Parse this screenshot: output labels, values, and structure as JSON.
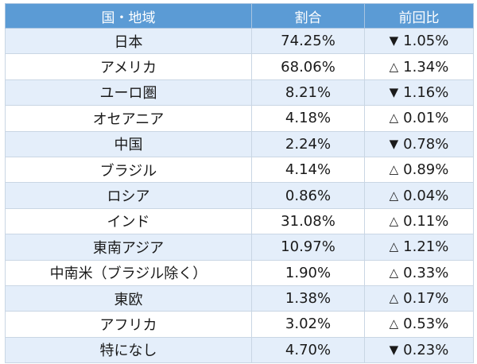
{
  "table": {
    "headers": [
      "国・地域",
      "割合",
      "前回比"
    ],
    "rows": [
      {
        "region": "日本",
        "share": "74.25%",
        "direction": "down",
        "symbol": "▼",
        "change": "1.05%"
      },
      {
        "region": "アメリカ",
        "share": "68.06%",
        "direction": "up",
        "symbol": "△",
        "change": "1.34%"
      },
      {
        "region": "ユーロ圏",
        "share": "8.21%",
        "direction": "down",
        "symbol": "▼",
        "change": "1.16%"
      },
      {
        "region": "オセアニア",
        "share": "4.18%",
        "direction": "up",
        "symbol": "△",
        "change": "0.01%"
      },
      {
        "region": "中国",
        "share": "2.24%",
        "direction": "down",
        "symbol": "▼",
        "change": "0.78%"
      },
      {
        "region": "ブラジル",
        "share": "4.14%",
        "direction": "up",
        "symbol": "△",
        "change": "0.89%"
      },
      {
        "region": "ロシア",
        "share": "0.86%",
        "direction": "up",
        "symbol": "△",
        "change": "0.04%"
      },
      {
        "region": "インド",
        "share": "31.08%",
        "direction": "up",
        "symbol": "△",
        "change": "0.11%"
      },
      {
        "region": "東南アジア",
        "share": "10.97%",
        "direction": "up",
        "symbol": "△",
        "change": "1.21%"
      },
      {
        "region": "中南米（ブラジル除く）",
        "share": "1.90%",
        "direction": "up",
        "symbol": "△",
        "change": "0.33%"
      },
      {
        "region": "東欧",
        "share": "1.38%",
        "direction": "up",
        "symbol": "△",
        "change": "0.17%"
      },
      {
        "region": "アフリカ",
        "share": "3.02%",
        "direction": "up",
        "symbol": "△",
        "change": "0.53%"
      },
      {
        "region": "特になし",
        "share": "4.70%",
        "direction": "down",
        "symbol": "▼",
        "change": "0.23%"
      }
    ]
  },
  "colors": {
    "header_background": "#5b9bd5",
    "header_text": "#ffffff",
    "stripe_row": "#e4eefa",
    "plain_row": "#ffffff",
    "border": "#c9d6e4"
  },
  "icons": {
    "down": "down-triangle-icon",
    "up": "up-triangle-outline-icon"
  }
}
